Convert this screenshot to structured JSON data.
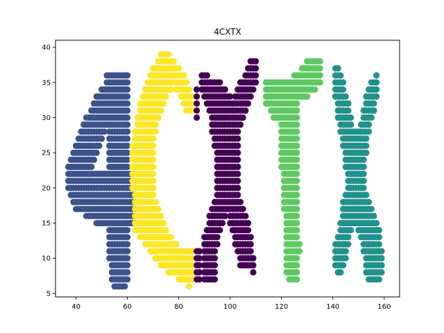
{
  "chart_data": {
    "type": "scatter",
    "title": "4CXTX",
    "xlabel": "",
    "ylabel": "",
    "xlim": [
      32,
      166
    ],
    "ylim": [
      4.5,
      41
    ],
    "xticks": [
      40,
      60,
      80,
      100,
      120,
      140,
      160
    ],
    "yticks": [
      5,
      10,
      15,
      20,
      25,
      30,
      35,
      40
    ],
    "grid": false,
    "legend": "none",
    "series": [
      {
        "color": "#3b528b",
        "rows": [
          [
            36,
            52,
            60
          ],
          [
            35,
            52,
            60
          ],
          [
            34,
            50,
            60
          ],
          [
            33,
            48,
            60
          ],
          [
            32,
            47,
            60
          ],
          [
            31,
            46,
            60
          ],
          [
            30,
            44,
            60
          ],
          [
            29,
            43,
            60
          ],
          [
            28,
            42,
            51
          ],
          [
            28,
            53,
            60
          ],
          [
            27,
            41,
            50
          ],
          [
            27,
            53,
            60
          ],
          [
            26,
            40,
            49
          ],
          [
            26,
            53,
            60
          ],
          [
            25,
            39,
            48
          ],
          [
            25,
            53,
            60
          ],
          [
            24,
            38,
            47
          ],
          [
            24,
            53,
            60
          ],
          [
            23,
            37,
            46
          ],
          [
            23,
            53,
            60
          ],
          [
            22,
            37,
            63
          ],
          [
            21,
            37,
            63
          ],
          [
            20,
            37,
            63
          ],
          [
            19,
            38,
            63
          ],
          [
            18,
            39,
            63
          ],
          [
            17,
            40,
            63
          ],
          [
            16,
            44,
            63
          ],
          [
            15,
            48,
            63
          ],
          [
            14,
            53,
            60
          ],
          [
            13,
            53,
            60
          ],
          [
            12,
            53,
            60
          ],
          [
            11,
            53,
            60
          ],
          [
            10,
            53,
            60
          ],
          [
            9,
            54,
            60
          ],
          [
            8,
            54,
            60
          ],
          [
            7,
            54,
            60
          ],
          [
            6,
            55,
            59
          ]
        ]
      },
      {
        "color": "#fde725",
        "rows": [
          [
            39,
            73,
            76
          ],
          [
            38,
            72,
            78
          ],
          [
            37,
            70,
            80
          ],
          [
            36,
            69,
            82
          ],
          [
            35,
            68,
            83
          ],
          [
            34,
            67,
            77
          ],
          [
            34,
            79,
            84
          ],
          [
            33,
            66,
            75
          ],
          [
            33,
            81,
            85
          ],
          [
            32,
            65,
            74
          ],
          [
            32,
            82,
            85
          ],
          [
            31,
            65,
            73
          ],
          [
            31,
            83,
            85
          ],
          [
            30,
            64,
            72
          ],
          [
            29,
            64,
            71
          ],
          [
            28,
            63,
            71
          ],
          [
            27,
            63,
            70
          ],
          [
            26,
            62,
            70
          ],
          [
            25,
            62,
            70
          ],
          [
            24,
            62,
            70
          ],
          [
            23,
            62,
            70
          ],
          [
            22,
            62,
            70
          ],
          [
            21,
            62,
            70
          ],
          [
            20,
            62,
            70
          ],
          [
            19,
            63,
            70
          ],
          [
            18,
            63,
            71
          ],
          [
            17,
            63,
            72
          ],
          [
            16,
            63,
            73
          ],
          [
            15,
            63,
            74
          ],
          [
            14,
            63,
            75
          ],
          [
            13,
            65,
            77
          ],
          [
            12,
            67,
            79
          ],
          [
            11,
            69,
            85
          ],
          [
            10,
            71,
            85
          ],
          [
            9,
            73,
            85
          ],
          [
            8,
            76,
            85
          ],
          [
            7,
            80,
            85
          ],
          [
            6,
            84,
            84
          ]
        ]
      },
      {
        "color": "#440154",
        "rows": [
          [
            38,
            108,
            110
          ],
          [
            37,
            107,
            110
          ],
          [
            36,
            89,
            91
          ],
          [
            36,
            106,
            110
          ],
          [
            35,
            89,
            96
          ],
          [
            35,
            104,
            110
          ],
          [
            34,
            87,
            87
          ],
          [
            34,
            89,
            98
          ],
          [
            34,
            103,
            109
          ],
          [
            33,
            87,
            87
          ],
          [
            33,
            90,
            100
          ],
          [
            33,
            102,
            108
          ],
          [
            32,
            87,
            87
          ],
          [
            32,
            91,
            101
          ],
          [
            32,
            101,
            107
          ],
          [
            31,
            87,
            87
          ],
          [
            31,
            92,
            106
          ],
          [
            30,
            87,
            87
          ],
          [
            30,
            93,
            105
          ],
          [
            29,
            93,
            104
          ],
          [
            28,
            93,
            103
          ],
          [
            27,
            94,
            103
          ],
          [
            26,
            94,
            103
          ],
          [
            25,
            95,
            103
          ],
          [
            24,
            95,
            103
          ],
          [
            23,
            95,
            103
          ],
          [
            22,
            95,
            103
          ],
          [
            21,
            95,
            103
          ],
          [
            20,
            95,
            103
          ],
          [
            19,
            95,
            103
          ],
          [
            18,
            94,
            104
          ],
          [
            17,
            93,
            105
          ],
          [
            16,
            92,
            98
          ],
          [
            16,
            100,
            106
          ],
          [
            15,
            92,
            97
          ],
          [
            15,
            100,
            107
          ],
          [
            14,
            91,
            96
          ],
          [
            14,
            101,
            107
          ],
          [
            13,
            90,
            95
          ],
          [
            13,
            102,
            108
          ],
          [
            12,
            90,
            95
          ],
          [
            12,
            102,
            108
          ],
          [
            11,
            87,
            88
          ],
          [
            11,
            90,
            94
          ],
          [
            11,
            103,
            108
          ],
          [
            10,
            87,
            88
          ],
          [
            10,
            90,
            94
          ],
          [
            10,
            104,
            109
          ],
          [
            9,
            87,
            88
          ],
          [
            9,
            90,
            94
          ],
          [
            9,
            104,
            109
          ],
          [
            8,
            87,
            88
          ],
          [
            8,
            90,
            94
          ],
          [
            8,
            109,
            109
          ],
          [
            7,
            87,
            88
          ],
          [
            7,
            90,
            94
          ]
        ]
      },
      {
        "color": "#5ec962",
        "rows": [
          [
            38,
            130,
            135
          ],
          [
            37,
            128,
            135
          ],
          [
            36,
            125,
            135
          ],
          [
            35,
            114,
            135
          ],
          [
            34,
            114,
            133
          ],
          [
            33,
            114,
            130
          ],
          [
            32,
            114,
            126
          ],
          [
            31,
            116,
            126
          ],
          [
            30,
            117,
            126
          ],
          [
            29,
            120,
            126
          ],
          [
            28,
            120,
            126
          ],
          [
            27,
            120,
            126
          ],
          [
            26,
            120,
            126
          ],
          [
            25,
            120,
            126
          ],
          [
            24,
            120,
            126
          ],
          [
            23,
            120,
            126
          ],
          [
            22,
            121,
            126
          ],
          [
            21,
            121,
            126
          ],
          [
            20,
            121,
            126
          ],
          [
            19,
            121,
            126
          ],
          [
            18,
            121,
            126
          ],
          [
            17,
            121,
            126
          ],
          [
            16,
            122,
            126
          ],
          [
            15,
            122,
            126
          ],
          [
            14,
            122,
            126
          ],
          [
            13,
            122,
            126
          ],
          [
            12,
            122,
            127
          ],
          [
            11,
            122,
            127
          ],
          [
            10,
            122,
            126
          ],
          [
            9,
            122,
            126
          ],
          [
            8,
            122,
            126
          ],
          [
            7,
            123,
            126
          ]
        ]
      },
      {
        "color": "#21918c",
        "rows": [
          [
            37,
            141,
            142
          ],
          [
            36,
            141,
            143
          ],
          [
            36,
            157,
            157
          ],
          [
            35,
            141,
            144
          ],
          [
            35,
            155,
            157
          ],
          [
            34,
            141,
            144
          ],
          [
            34,
            154,
            157
          ],
          [
            33,
            141,
            145
          ],
          [
            33,
            153,
            157
          ],
          [
            32,
            142,
            146
          ],
          [
            32,
            153,
            156
          ],
          [
            31,
            142,
            146
          ],
          [
            31,
            152,
            156
          ],
          [
            30,
            142,
            147
          ],
          [
            30,
            152,
            155
          ],
          [
            29,
            143,
            147
          ],
          [
            29,
            151,
            154
          ],
          [
            28,
            143,
            154
          ],
          [
            27,
            144,
            153
          ],
          [
            26,
            144,
            153
          ],
          [
            25,
            145,
            153
          ],
          [
            24,
            145,
            152
          ],
          [
            23,
            145,
            152
          ],
          [
            22,
            146,
            152
          ],
          [
            21,
            146,
            152
          ],
          [
            20,
            146,
            152
          ],
          [
            19,
            145,
            153
          ],
          [
            18,
            144,
            154
          ],
          [
            17,
            144,
            155
          ],
          [
            16,
            144,
            156
          ],
          [
            15,
            143,
            157
          ],
          [
            14,
            143,
            147
          ],
          [
            14,
            150,
            158
          ],
          [
            13,
            142,
            146
          ],
          [
            13,
            151,
            158
          ],
          [
            12,
            141,
            146
          ],
          [
            12,
            152,
            158
          ],
          [
            11,
            141,
            145
          ],
          [
            11,
            152,
            159
          ],
          [
            10,
            141,
            145
          ],
          [
            10,
            153,
            159
          ],
          [
            9,
            141,
            144
          ],
          [
            9,
            153,
            159
          ],
          [
            8,
            142,
            143
          ],
          [
            8,
            153,
            159
          ],
          [
            7,
            154,
            158
          ]
        ]
      }
    ]
  }
}
